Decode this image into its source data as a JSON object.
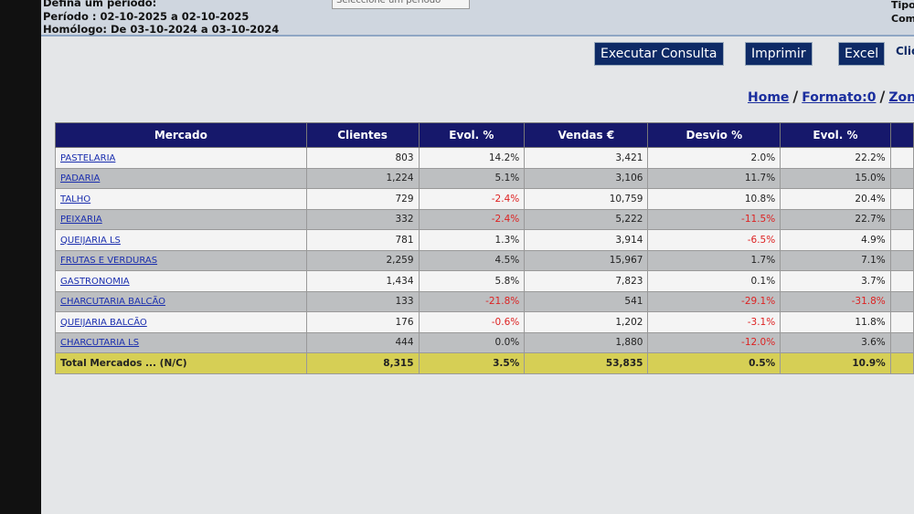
{
  "header": {
    "define_label": "Defina um período:",
    "period": "Período : 02-10-2025 a 02-10-2025",
    "homologo": "Homólogo: De 03-10-2024 a 03-10-2024",
    "select_placeholder": "Seleccione um período",
    "right_top": "Tipo",
    "right_bottom": "Com"
  },
  "buttons": [
    "Executar Consulta",
    "Imprimir",
    "Excel"
  ],
  "buttons_extra": "Clic",
  "breadcrumb": [
    "Home",
    "/",
    "Formato:0",
    "/",
    "Zona"
  ],
  "table": {
    "columns": [
      "Mercado",
      "Clientes",
      "Evol. %",
      "Vendas €",
      "Desvio %",
      "Evol. %"
    ],
    "rows": [
      [
        "PASTELARIA",
        "803",
        "14.2%",
        "3,421",
        "2.0%",
        "22.2%"
      ],
      [
        "PADARIA",
        "1,224",
        "5.1%",
        "3,106",
        "11.7%",
        "15.0%"
      ],
      [
        "TALHO",
        "729",
        "-2.4%",
        "10,759",
        "10.8%",
        "20.4%"
      ],
      [
        "PEIXARIA",
        "332",
        "-2.4%",
        "5,222",
        "-11.5%",
        "22.7%"
      ],
      [
        "QUEIJARIA LS",
        "781",
        "1.3%",
        "3,914",
        "-6.5%",
        "4.9%"
      ],
      [
        "FRUTAS E VERDURAS",
        "2,259",
        "4.5%",
        "15,967",
        "1.7%",
        "7.1%"
      ],
      [
        "GASTRONOMIA",
        "1,434",
        "5.8%",
        "7,823",
        "0.1%",
        "3.7%"
      ],
      [
        "CHARCUTARIA BALCÃO",
        "133",
        "-21.8%",
        "541",
        "-29.1%",
        "-31.8%"
      ],
      [
        "QUEIJARIA BALCÃO",
        "176",
        "-0.6%",
        "1,202",
        "-3.1%",
        "11.8%"
      ],
      [
        "CHARCUTARIA LS",
        "444",
        "0.0%",
        "1,880",
        "-12.0%",
        "3.6%"
      ]
    ],
    "total": [
      "Total Mercados ... (N/C)",
      "8,315",
      "3.5%",
      "53,835",
      "0.5%",
      "10.9%"
    ]
  }
}
